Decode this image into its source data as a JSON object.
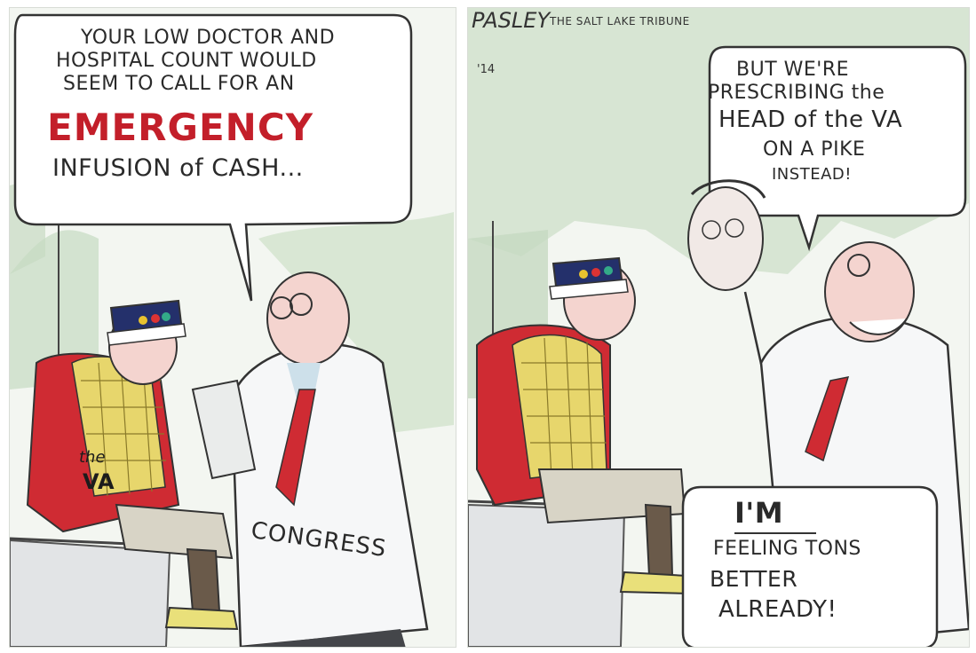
{
  "left_panel": {
    "balloon_lines": [
      "YOUR LOW DOCTOR AND",
      "HOSPITAL COUNT WOULD",
      "SEEM TO CALL FOR AN",
      "EMERGENCY",
      "INFUSION of CASH..."
    ],
    "vest_label_small": "the",
    "vest_label_large": "VA",
    "coat_label": "CONGRESS"
  },
  "right_panel": {
    "signature": "PASLEY",
    "publication": "THE SALT LAKE TRIBUNE",
    "year": "'14",
    "balloon_lines": [
      "BUT WE'RE",
      "PRESCRIBING the",
      "HEAD of the VA",
      "ON A PIKE",
      "INSTEAD!"
    ],
    "bottom_lines": [
      "I'M",
      "FEELING TONS",
      "BETTER",
      "ALREADY!"
    ]
  },
  "colors": {
    "accent_red": "#c31f2a",
    "vest_red": "#cf2b33",
    "plaid_yellow": "#e7d66c",
    "wall_green": "#cfe1cc",
    "cap_blue": "#24306b"
  }
}
